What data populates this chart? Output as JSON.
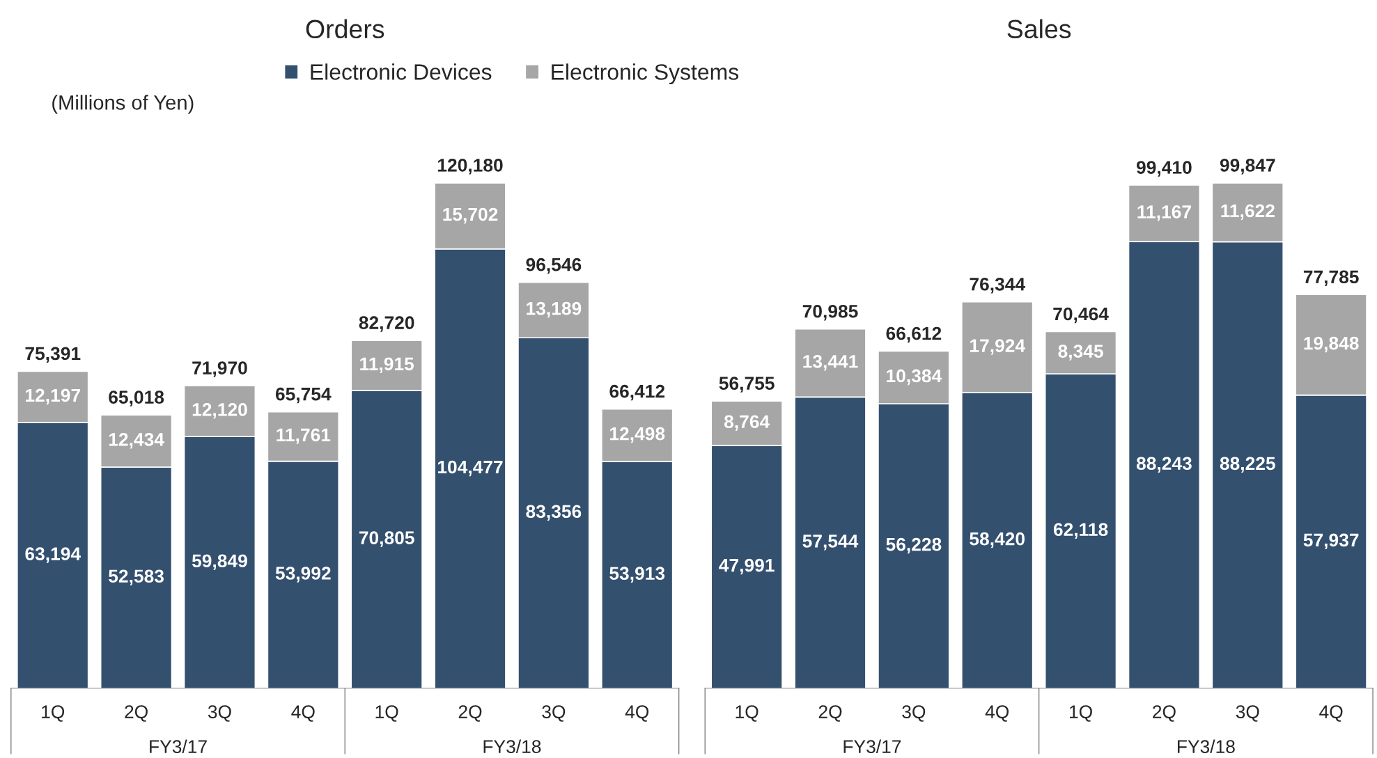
{
  "chart_data": [
    {
      "type": "bar",
      "title": "Orders",
      "stacked": true,
      "legend": "top",
      "categories": [
        "1Q",
        "2Q",
        "3Q",
        "4Q",
        "1Q",
        "2Q",
        "3Q",
        "4Q"
      ],
      "annotations": [
        "(Millions of Yen)",
        "FY3/17",
        "FY3/18"
      ],
      "series": [
        {
          "name": "Electronic Devices",
          "color": "#34506f",
          "values": [
            63194,
            52583,
            59849,
            53992,
            70805,
            104477,
            83356,
            53913
          ],
          "value_labels": [
            "63,194",
            "52,583",
            "59,849",
            "53,992",
            "70,805",
            "104,477",
            "83,356",
            "53,913"
          ]
        },
        {
          "name": "Electronic Systems",
          "color": "#a6a6a6",
          "values": [
            12197,
            12434,
            12120,
            11761,
            11915,
            15702,
            13189,
            12498
          ],
          "value_labels": [
            "12,197",
            "12,434",
            "12,120",
            "11,761",
            "11,915",
            "15,702",
            "13,189",
            "12,498"
          ]
        }
      ],
      "totals": [
        "75,391",
        "65,018",
        "71,970",
        "65,754",
        "82,720",
        "120,180",
        "96,546",
        "66,412"
      ]
    },
    {
      "type": "bar",
      "title": "Sales",
      "stacked": true,
      "legend": false,
      "categories": [
        "1Q",
        "2Q",
        "3Q",
        "4Q",
        "1Q",
        "2Q",
        "3Q",
        "4Q"
      ],
      "annotations": [
        "FY3/17",
        "FY3/18"
      ],
      "series": [
        {
          "color": "#34506f",
          "values": [
            47991,
            57544,
            56228,
            58420,
            62118,
            88243,
            88225,
            57937
          ],
          "value_labels": [
            "47,991",
            "57,544",
            "56,228",
            "58,420",
            "62,118",
            "88,243",
            "88,225",
            "57,937"
          ]
        },
        {
          "color": "#a6a6a6",
          "values": [
            8764,
            13441,
            10384,
            17924,
            8345,
            11167,
            11622,
            19848
          ],
          "value_labels": [
            "8,764",
            "13,441",
            "10,384",
            "17,924",
            "8,345",
            "11,167",
            "11,622",
            "19,848"
          ]
        }
      ],
      "totals": [
        "56,755",
        "70,985",
        "66,612",
        "76,344",
        "70,464",
        "99,410",
        "99,847",
        "77,785"
      ]
    }
  ]
}
